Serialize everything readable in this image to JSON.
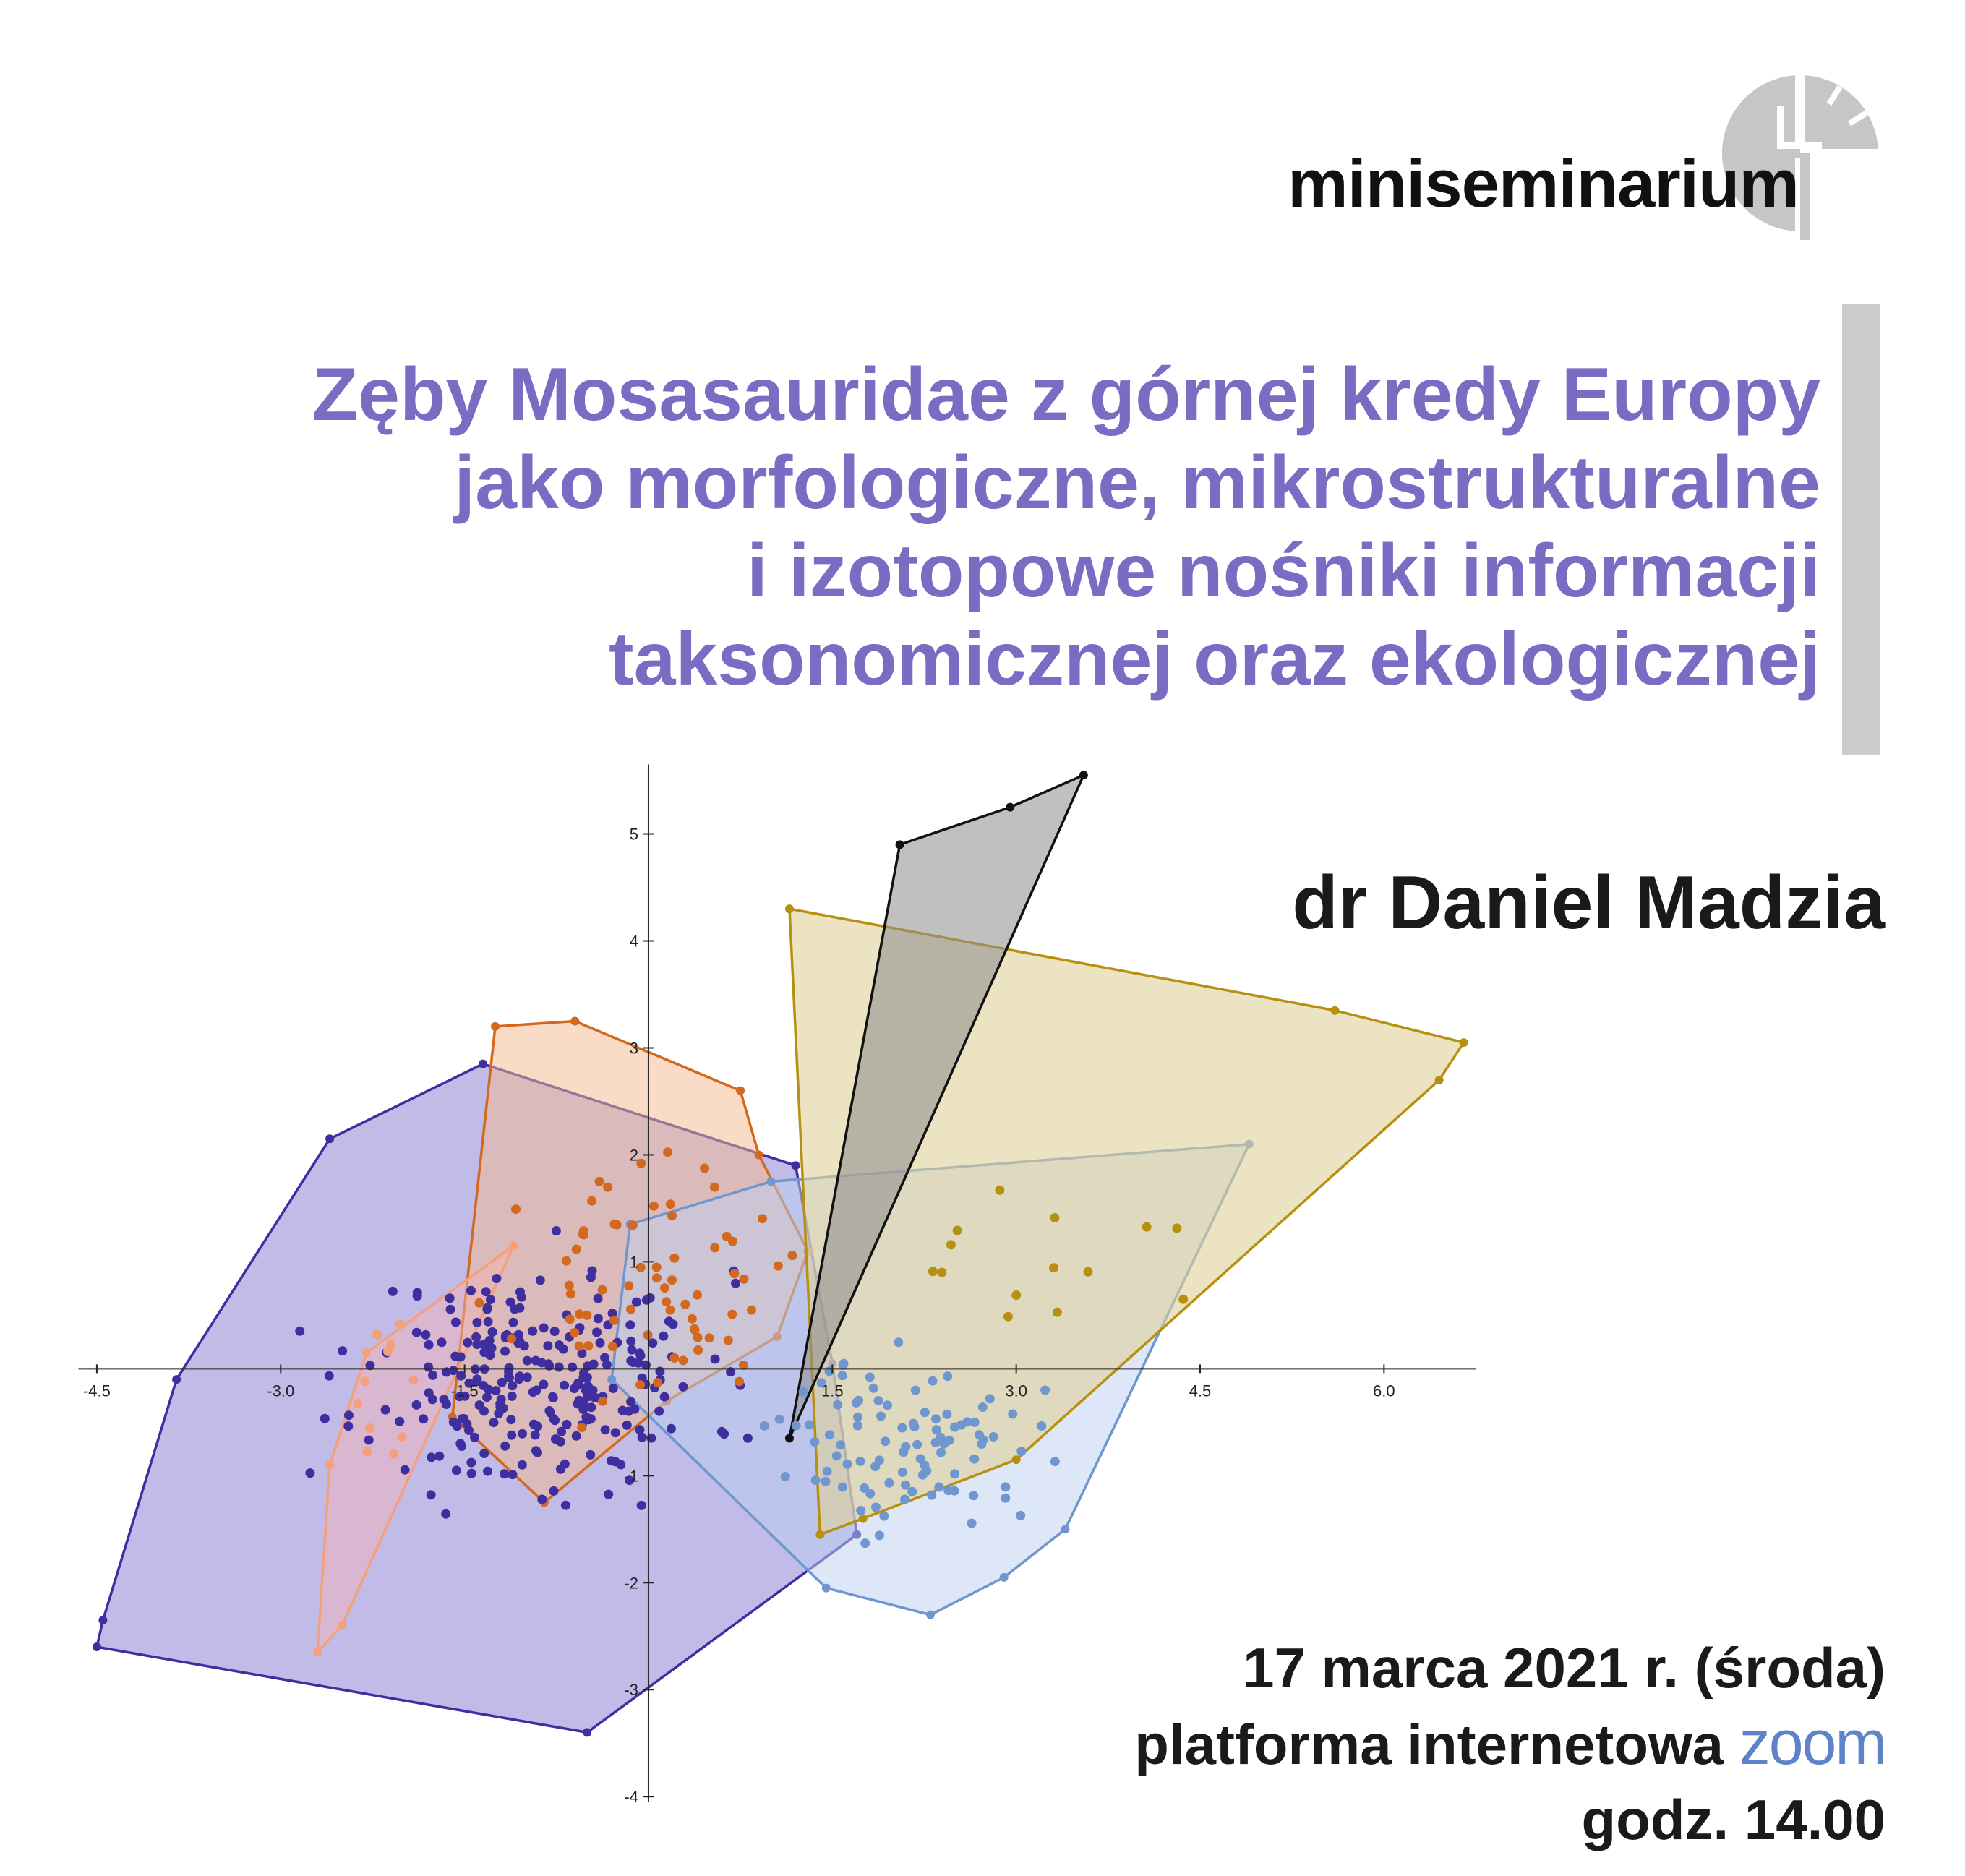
{
  "header": {
    "series_name": "miniseminarium"
  },
  "title_lines": [
    "Zęby Mosasauridae z górnej kredy Europy",
    "jako morfologiczne, mikrostrukturalne",
    "i izotopowe nośniki informacji",
    "taksonomicznej oraz ekologicznej"
  ],
  "speaker": "dr Daniel Madzia",
  "event": {
    "date": "17 marca 2021 r. (środa)",
    "platform_prefix": "platforma internetowa",
    "platform_logo_text": "zoom",
    "time": "godz. 14.00"
  },
  "colors": {
    "title": "#7a6cc3",
    "purple_group": "#3f2ea0",
    "orange_group": "#d2691e",
    "pink_group": "#f4a07a",
    "blue_group": "#6f96cf",
    "gold_group": "#b8900f",
    "black_group": "#111111",
    "zoom_blue": "#5e83c9"
  },
  "chart_data": {
    "type": "scatter",
    "x_ticks": [
      "-4.5",
      "-3.0",
      "-1.5",
      "1.5",
      "3.0",
      "4.5",
      "6.0"
    ],
    "y_ticks": [
      "5",
      "4",
      "3",
      "2",
      "1",
      "-1",
      "-2",
      "-3",
      "-4"
    ],
    "xlim": [
      -4.7,
      6.8
    ],
    "ylim": [
      -4.1,
      5.7
    ],
    "hulls": [
      {
        "color": "#3f2ea0",
        "fill": "#8e84d6",
        "opacity": 0.55,
        "points": [
          [
            -2.6,
            2.15
          ],
          [
            -1.35,
            2.85
          ],
          [
            1.2,
            1.9
          ],
          [
            1.5,
            0.05
          ],
          [
            1.7,
            -1.55
          ],
          [
            -0.5,
            -3.4
          ],
          [
            -4.5,
            -2.6
          ],
          [
            -4.45,
            -2.35
          ],
          [
            -3.85,
            -0.1
          ]
        ]
      },
      {
        "color": "#d2691e",
        "fill": "#f6b98e",
        "opacity": 0.5,
        "points": [
          [
            -1.25,
            3.2
          ],
          [
            -0.6,
            3.25
          ],
          [
            0.75,
            2.6
          ],
          [
            0.9,
            2.0
          ],
          [
            1.3,
            1.1
          ],
          [
            1.05,
            0.3
          ],
          [
            0.15,
            -0.3
          ],
          [
            -0.85,
            -1.25
          ],
          [
            -1.6,
            -0.45
          ]
        ]
      },
      {
        "color": "#f4a07a",
        "fill": "#f7b3b3",
        "opacity": 0.45,
        "points": [
          [
            -1.1,
            1.15
          ],
          [
            -2.3,
            0.15
          ],
          [
            -2.6,
            -0.9
          ],
          [
            -2.7,
            -2.65
          ],
          [
            -2.5,
            -2.4
          ]
        ]
      },
      {
        "color": "#6f96cf",
        "fill": "#bcd0f0",
        "opacity": 0.5,
        "points": [
          [
            -0.15,
            1.35
          ],
          [
            1.0,
            1.75
          ],
          [
            4.9,
            2.1
          ],
          [
            3.4,
            -1.5
          ],
          [
            2.9,
            -1.95
          ],
          [
            2.3,
            -2.3
          ],
          [
            1.45,
            -2.05
          ],
          [
            -0.3,
            -0.1
          ]
        ]
      },
      {
        "color": "#b8900f",
        "fill": "#e0d09a",
        "opacity": 0.6,
        "points": [
          [
            1.15,
            4.3
          ],
          [
            5.6,
            3.35
          ],
          [
            6.65,
            3.05
          ],
          [
            6.45,
            2.7
          ],
          [
            3.0,
            -0.85
          ],
          [
            1.75,
            -1.4
          ],
          [
            1.4,
            -1.55
          ]
        ]
      },
      {
        "color": "#111111",
        "fill": "#8c8c8c",
        "opacity": 0.55,
        "points": [
          [
            2.05,
            4.9
          ],
          [
            2.95,
            5.25
          ],
          [
            3.55,
            5.55
          ],
          [
            1.15,
            -0.65
          ]
        ]
      }
    ],
    "scatter_series": [
      {
        "color": "#3f2ea0",
        "count": 260,
        "center": [
          -0.9,
          -0.1
        ],
        "spread": [
          1.15,
          0.85
        ],
        "seed": 11
      },
      {
        "color": "#d2691e",
        "count": 70,
        "center": [
          0.0,
          0.75
        ],
        "spread": [
          0.85,
          0.85
        ],
        "seed": 23
      },
      {
        "color": "#6f96cf",
        "count": 95,
        "center": [
          2.15,
          -0.7
        ],
        "spread": [
          0.85,
          0.65
        ],
        "seed": 37
      },
      {
        "color": "#b8900f",
        "count": 14,
        "center": [
          3.3,
          1.0
        ],
        "spread": [
          1.3,
          0.8
        ],
        "seed": 51
      },
      {
        "color": "#f4a07a",
        "count": 12,
        "center": [
          -2.1,
          -0.3
        ],
        "spread": [
          0.35,
          0.6
        ],
        "seed": 67
      }
    ]
  }
}
